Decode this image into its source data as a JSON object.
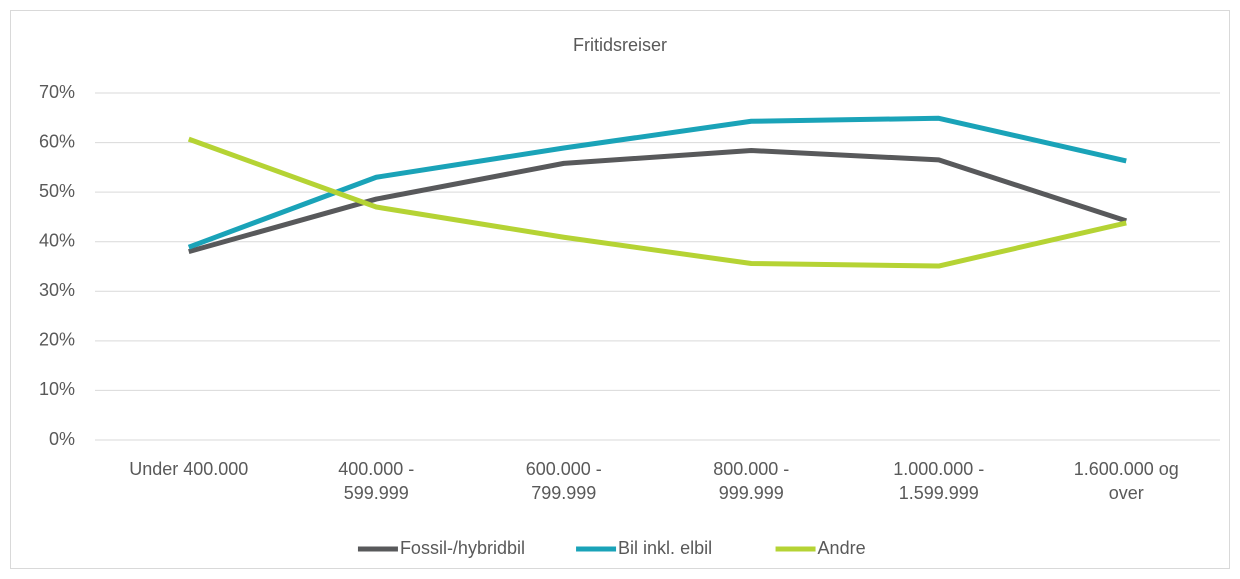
{
  "chart_data": {
    "type": "line",
    "title": "Fritidsreiser",
    "categories": [
      "Under 400.000",
      "400.000 - 599.999",
      "600.000 - 799.999",
      "800.000 - 999.999",
      "1.000.000 - 1.599.999",
      "1.600.000 og over"
    ],
    "series": [
      {
        "name": "Fossil-/hybridbil",
        "color": "#58595b",
        "values": [
          38,
          48.6,
          55.8,
          58.4,
          56.5,
          44.2
        ]
      },
      {
        "name": "Bil inkl. elbil",
        "color": "#1aa3b8",
        "values": [
          38.9,
          53,
          58.9,
          64.3,
          64.9,
          56.3
        ]
      },
      {
        "name": "Andre",
        "color": "#b5d334",
        "values": [
          60.7,
          47,
          40.9,
          35.6,
          35.1,
          43.8
        ]
      }
    ],
    "ylim": [
      0,
      70
    ],
    "yticks": [
      {
        "value": 0,
        "label": "0%"
      },
      {
        "value": 10,
        "label": "10%"
      },
      {
        "value": 20,
        "label": "20%"
      },
      {
        "value": 30,
        "label": "30%"
      },
      {
        "value": 40,
        "label": "40%"
      },
      {
        "value": 50,
        "label": "50%"
      },
      {
        "value": 60,
        "label": "60%"
      },
      {
        "value": 70,
        "label": "70%"
      }
    ],
    "grid": true,
    "legend": "bottom"
  }
}
